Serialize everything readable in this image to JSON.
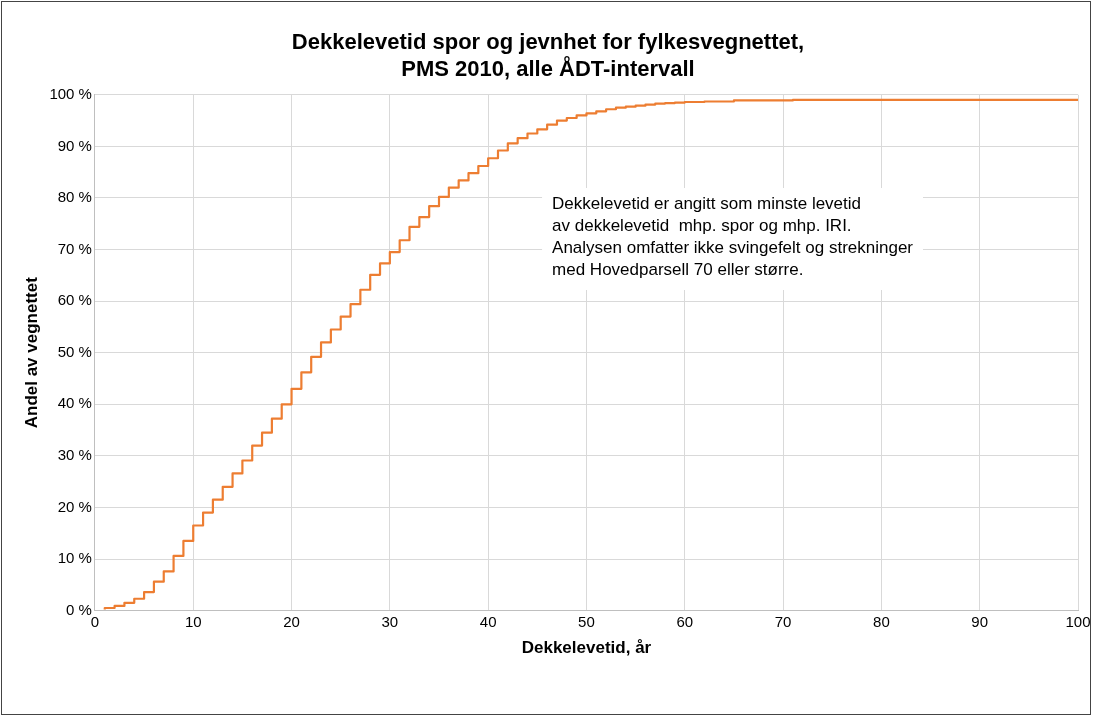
{
  "chart_data": {
    "type": "step",
    "title": "Dekkelevetid spor og jevnhet for fylkesvegnettet,\nPMS 2010, alle ÅDT-intervall",
    "xlabel": "Dekkelevetid, år",
    "ylabel": "Andel av vegnettet",
    "annotations": [
      "Dekkelevetid er angitt som minste levetid",
      "av dekkelevetid  mhp. spor og mhp. IRI.",
      "Analysen omfatter ikke svingefelt og strekninger",
      "med Hovedparsell 70 eller større."
    ],
    "x": [
      1,
      2,
      3,
      4,
      5,
      6,
      7,
      8,
      9,
      10,
      11,
      12,
      13,
      14,
      15,
      16,
      17,
      18,
      19,
      20,
      21,
      22,
      23,
      24,
      25,
      26,
      27,
      28,
      29,
      30,
      31,
      32,
      33,
      34,
      35,
      36,
      37,
      38,
      39,
      40,
      41,
      42,
      43,
      44,
      45,
      46,
      47,
      48,
      49,
      50,
      51,
      52,
      53,
      54,
      55,
      56,
      57,
      58,
      59,
      60,
      62,
      65,
      71,
      84,
      100
    ],
    "series": [
      {
        "color": "#ed7d31",
        "values": [
          0.2,
          0.5,
          0.9,
          1.5,
          2.3,
          3.6,
          5.6,
          7.6,
          10.6,
          13.5,
          16.5,
          19,
          21.5,
          24,
          26.6,
          29.1,
          32,
          34.5,
          37.2,
          40,
          43,
          46.2,
          49.2,
          52,
          54.5,
          57,
          59.4,
          62.2,
          65.1,
          67.3,
          69.5,
          71.8,
          74.4,
          76.3,
          78.4,
          80.2,
          82,
          83.4,
          84.8,
          86.2,
          87.7,
          89.2,
          90.6,
          91.6,
          92.5,
          93.3,
          94.2,
          95,
          95.5,
          96,
          96.4,
          96.8,
          97.2,
          97.5,
          97.7,
          97.9,
          98.1,
          98.3,
          98.4,
          98.5,
          98.6,
          98.7,
          98.9,
          99,
          99
        ]
      }
    ],
    "xlim": [
      0,
      100
    ],
    "xticks": [
      0,
      10,
      20,
      30,
      40,
      50,
      60,
      70,
      80,
      90,
      100
    ],
    "ylim": [
      0,
      100
    ],
    "yticks": [
      {
        "value": 0,
        "label": "0 %"
      },
      {
        "value": 10,
        "label": "10 %"
      },
      {
        "value": 20,
        "label": "20 %"
      },
      {
        "value": 30,
        "label": "30 %"
      },
      {
        "value": 40,
        "label": "40 %"
      },
      {
        "value": 50,
        "label": "50 %"
      },
      {
        "value": 60,
        "label": "60 %"
      },
      {
        "value": 70,
        "label": "70 %"
      },
      {
        "value": 80,
        "label": "80 %"
      },
      {
        "value": 90,
        "label": "90 %"
      },
      {
        "value": 100,
        "label": "100 %"
      }
    ],
    "grid": true,
    "legend": false,
    "marker": "none",
    "line_style": "solid"
  }
}
